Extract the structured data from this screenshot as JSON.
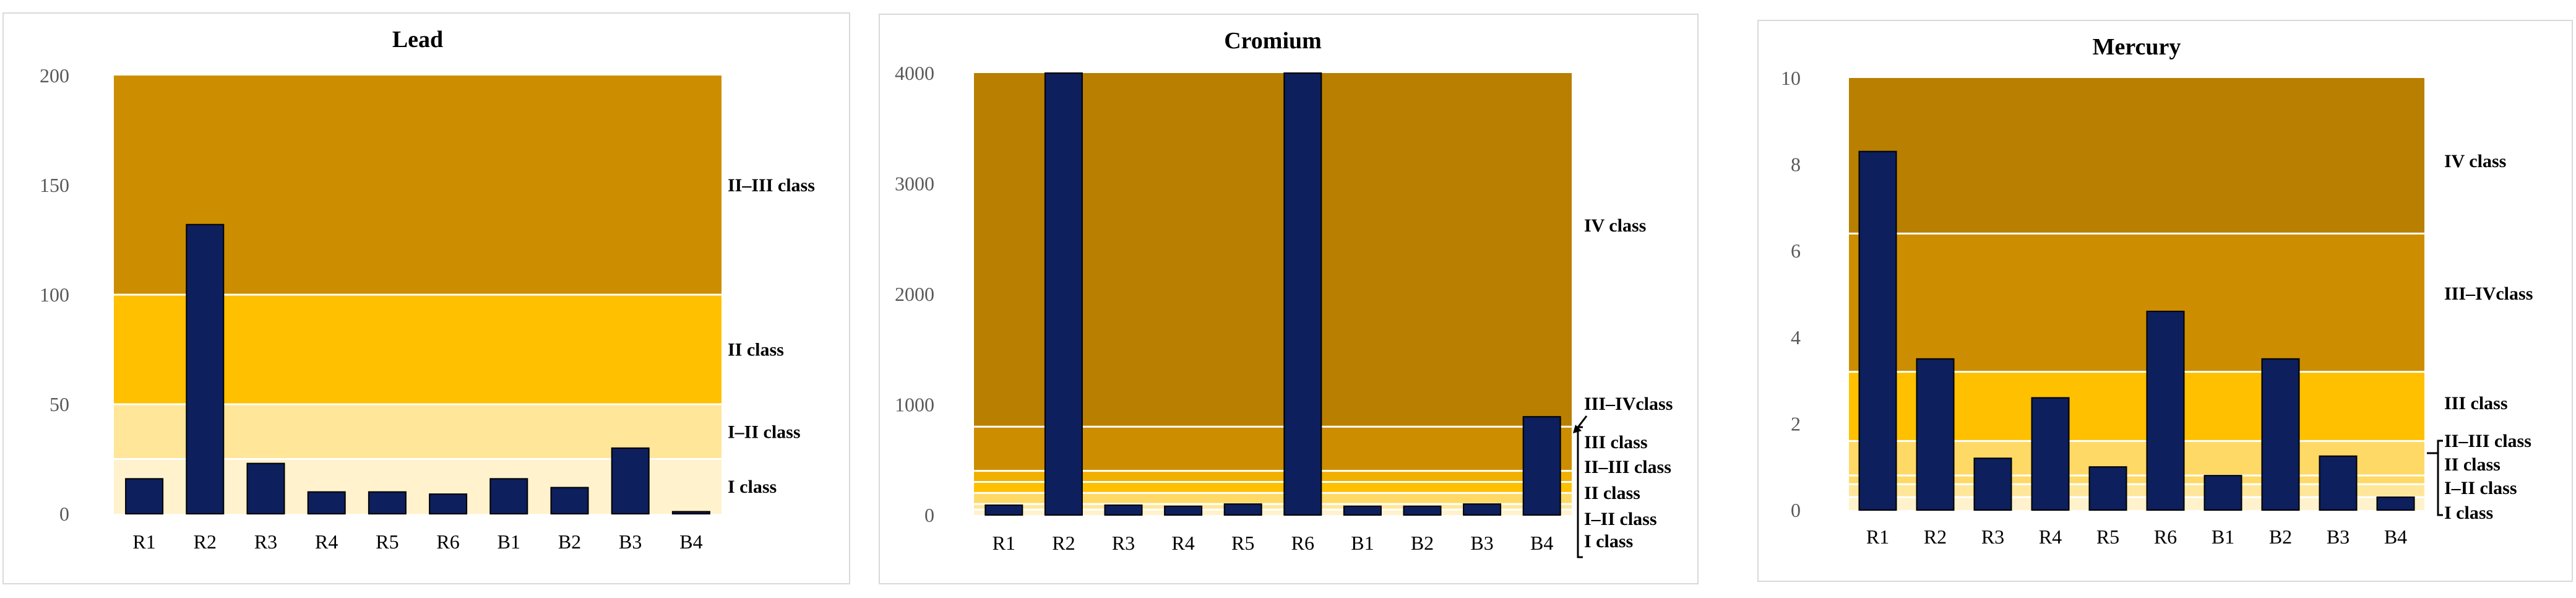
{
  "chart_data": [
    {
      "type": "bar",
      "title": "Lead",
      "categories": [
        "R1",
        "R2",
        "R3",
        "R4",
        "R5",
        "R6",
        "B1",
        "B2",
        "B3",
        "B4"
      ],
      "values": [
        16,
        132,
        23,
        10,
        10,
        9,
        16,
        12,
        30,
        1
      ],
      "ylim": [
        0,
        200
      ],
      "yticks": [
        "0",
        "50",
        "100",
        "150",
        "200"
      ],
      "bar_color": "#0d1f5c",
      "grid": false,
      "class_bands": [
        {
          "label": "I class",
          "from": 0,
          "to": 25,
          "color": "#fff2cc"
        },
        {
          "label": "I–II class",
          "from": 25,
          "to": 50,
          "color": "#ffe699"
        },
        {
          "label": "II class",
          "from": 50,
          "to": 100,
          "color": "#ffc000"
        },
        {
          "label": "II–III class",
          "from": 100,
          "to": 200,
          "color": "#cc8e00"
        }
      ]
    },
    {
      "type": "bar",
      "title": "Cromium",
      "categories": [
        "R1",
        "R2",
        "R3",
        "R4",
        "R5",
        "R6",
        "B1",
        "B2",
        "B3",
        "B4"
      ],
      "values": [
        90,
        4000,
        90,
        80,
        100,
        4000,
        80,
        80,
        100,
        890
      ],
      "ylim": [
        0,
        4000
      ],
      "yticks": [
        "0",
        "1000",
        "2000",
        "3000",
        "4000"
      ],
      "bar_color": "#0d1f5c",
      "grid": false,
      "class_bands": [
        {
          "label": "I class",
          "from": 0,
          "to": 50,
          "color": "#fff2cc"
        },
        {
          "label": "I–II class",
          "from": 50,
          "to": 100,
          "color": "#ffe699"
        },
        {
          "label": "II class",
          "from": 100,
          "to": 200,
          "color": "#ffd966"
        },
        {
          "label": "II–III class",
          "from": 200,
          "to": 300,
          "color": "#ffc000"
        },
        {
          "label": "III  class",
          "from": 300,
          "to": 400,
          "color": "#f0b000"
        },
        {
          "label": "III–IVclass",
          "from": 400,
          "to": 800,
          "color": "#cc8e00"
        },
        {
          "label": "IV class",
          "from": 800,
          "to": 4000,
          "color": "#b87f00"
        }
      ]
    },
    {
      "type": "bar",
      "title": "Mercury",
      "categories": [
        "R1",
        "R2",
        "R3",
        "R4",
        "R5",
        "R6",
        "B1",
        "B2",
        "B3",
        "B4"
      ],
      "values": [
        8.3,
        3.5,
        1.2,
        2.6,
        1.0,
        4.6,
        0.8,
        3.5,
        1.25,
        0.3
      ],
      "ylim": [
        0,
        10
      ],
      "yticks": [
        "0",
        "2",
        "4",
        "6",
        "8",
        "10"
      ],
      "bar_color": "#0d1f5c",
      "grid": false,
      "class_bands": [
        {
          "label": "I class",
          "from": 0,
          "to": 0.3,
          "color": "#fff2cc"
        },
        {
          "label": "I–II class",
          "from": 0.3,
          "to": 0.6,
          "color": "#ffe699"
        },
        {
          "label": "II class",
          "from": 0.6,
          "to": 0.8,
          "color": "#ffd966"
        },
        {
          "label": "II–III class",
          "from": 0.8,
          "to": 1.6,
          "color": "#ffd966"
        },
        {
          "label": "III class",
          "from": 1.6,
          "to": 3.2,
          "color": "#ffc000"
        },
        {
          "label": "III–IVclass",
          "from": 3.2,
          "to": 6.4,
          "color": "#cc8e00"
        },
        {
          "label": "IV class",
          "from": 6.4,
          "to": 10,
          "color": "#b87f00"
        }
      ]
    }
  ]
}
